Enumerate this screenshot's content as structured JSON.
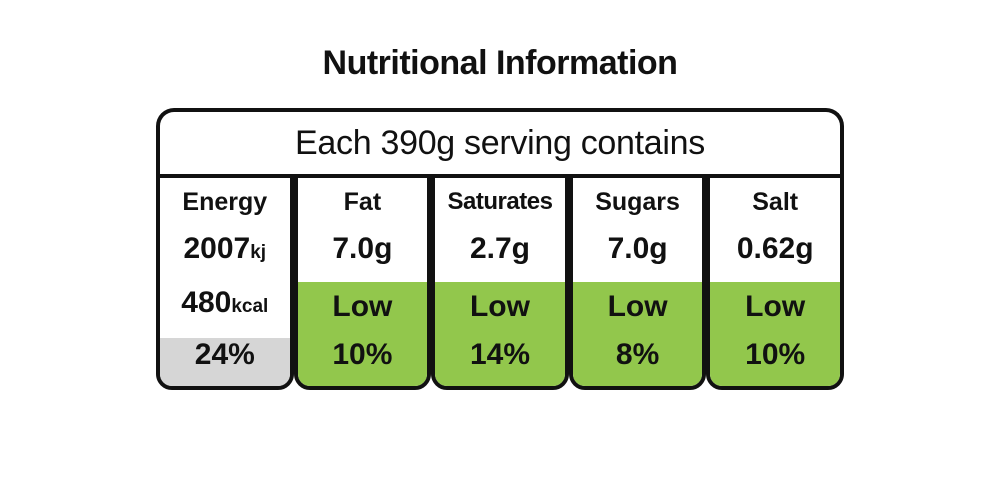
{
  "title": "Nutritional Information",
  "serving": "Each 390g serving contains",
  "colors": {
    "low": "#92c74c",
    "neutral": "#d6d6d6",
    "border": "#111111"
  },
  "energy": {
    "name": "Energy",
    "kj_value": "2007",
    "kj_unit": "kj",
    "kcal_value": "480",
    "kcal_unit": "kcal",
    "percent": "24%"
  },
  "nutrients": [
    {
      "name": "Fat",
      "amount": "7.0g",
      "level": "Low",
      "percent": "10%"
    },
    {
      "name": "Saturates",
      "amount": "2.7g",
      "level": "Low",
      "percent": "14%"
    },
    {
      "name": "Sugars",
      "amount": "7.0g",
      "level": "Low",
      "percent": "8%"
    },
    {
      "name": "Salt",
      "amount": "0.62g",
      "level": "Low",
      "percent": "10%"
    }
  ]
}
